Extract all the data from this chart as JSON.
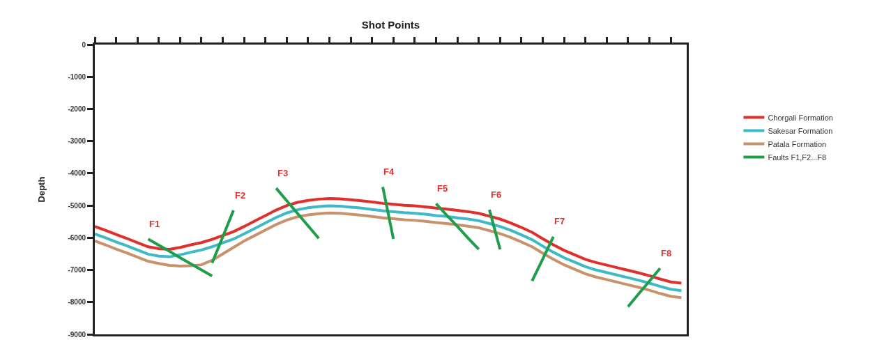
{
  "chart_data": {
    "type": "line",
    "xlabel": "Shot Points",
    "ylabel": "Depth",
    "categories": [
      null,
      null,
      null,
      null,
      null,
      null,
      null,
      null,
      null,
      null,
      null,
      null,
      null,
      null,
      null,
      null,
      null,
      null,
      null,
      null,
      null,
      null,
      null,
      null,
      null,
      null,
      null,
      null,
      null,
      null,
      null,
      null,
      null,
      null,
      null,
      null,
      null,
      null,
      null,
      null,
      null,
      null,
      null,
      null,
      null,
      null,
      null,
      null,
      null,
      null,
      null,
      null,
      null,
      null,
      null,
      null
    ],
    "ylim": [
      -9000,
      0
    ],
    "yticks": [
      0,
      -1000,
      -2000,
      -3000,
      -4000,
      -5000,
      -6000,
      -7000,
      -8000,
      -9000
    ],
    "grid": false,
    "legend": "right",
    "line_style": "solid",
    "series": [
      {
        "name": "Chorgali Formation",
        "color": "#e0302c",
        "values": [
          -5650,
          -5770,
          -5900,
          -6020,
          -6150,
          -6280,
          -6340,
          -6360,
          -6300,
          -6220,
          -6150,
          -6050,
          -5930,
          -5810,
          -5650,
          -5480,
          -5310,
          -5140,
          -5000,
          -4900,
          -4840,
          -4800,
          -4780,
          -4790,
          -4820,
          -4850,
          -4890,
          -4930,
          -4960,
          -4990,
          -5010,
          -5040,
          -5080,
          -5110,
          -5150,
          -5190,
          -5240,
          -5330,
          -5420,
          -5540,
          -5680,
          -5830,
          -6030,
          -6220,
          -6390,
          -6530,
          -6670,
          -6770,
          -6850,
          -6930,
          -7010,
          -7090,
          -7180,
          -7280,
          -7370,
          -7410
        ]
      },
      {
        "name": "Sakesar Formation",
        "color": "#3fb8c8",
        "values": [
          -5880,
          -6000,
          -6130,
          -6250,
          -6380,
          -6510,
          -6570,
          -6590,
          -6530,
          -6450,
          -6380,
          -6280,
          -6160,
          -6040,
          -5880,
          -5710,
          -5540,
          -5370,
          -5230,
          -5130,
          -5070,
          -5030,
          -5010,
          -5020,
          -5050,
          -5080,
          -5120,
          -5160,
          -5190,
          -5220,
          -5240,
          -5270,
          -5310,
          -5340,
          -5380,
          -5420,
          -5470,
          -5560,
          -5650,
          -5770,
          -5910,
          -6060,
          -6260,
          -6450,
          -6620,
          -6760,
          -6900,
          -7000,
          -7080,
          -7160,
          -7240,
          -7320,
          -7410,
          -7510,
          -7600,
          -7640
        ]
      },
      {
        "name": "Patala Formation",
        "color": "#c8926c",
        "values": [
          -6100,
          -6220,
          -6350,
          -6470,
          -6600,
          -6730,
          -6800,
          -6860,
          -6880,
          -6870,
          -6840,
          -6700,
          -6500,
          -6300,
          -6100,
          -5930,
          -5760,
          -5590,
          -5450,
          -5350,
          -5290,
          -5250,
          -5230,
          -5240,
          -5270,
          -5300,
          -5340,
          -5380,
          -5410,
          -5440,
          -5460,
          -5490,
          -5530,
          -5560,
          -5600,
          -5640,
          -5690,
          -5780,
          -5870,
          -5990,
          -6130,
          -6280,
          -6480,
          -6670,
          -6840,
          -6980,
          -7120,
          -7220,
          -7300,
          -7380,
          -7460,
          -7540,
          -7630,
          -7730,
          -7820,
          -7860
        ]
      },
      {
        "name": "Faults F1,F2...F8",
        "color": "#1e9e4a",
        "values": [
          null,
          null,
          null,
          null,
          null,
          -6040,
          -6230,
          -6420,
          -6620,
          -6810,
          -7000,
          -7190,
          null,
          null,
          null,
          null,
          null,
          -4460,
          -4850,
          -5240,
          -5630,
          -6020,
          null,
          null,
          null,
          null,
          null,
          null,
          null,
          null,
          null,
          null,
          -4940,
          -5300,
          -5650,
          -6010,
          -6360,
          null,
          null,
          null,
          null,
          -7340,
          -6660,
          -5970,
          null,
          null,
          null,
          null,
          null,
          null,
          null,
          null,
          null,
          null,
          null,
          null
        ]
      },
      {
        "color": "#1e9e4a",
        "values": [
          null,
          null,
          null,
          null,
          null,
          null,
          null,
          null,
          null,
          null,
          null,
          -6780,
          -5970,
          -5150,
          null,
          null,
          null,
          null,
          null,
          null,
          null,
          null,
          null,
          null,
          null,
          null,
          null,
          -4420,
          -6040,
          null,
          null,
          null,
          null,
          null,
          null,
          null,
          null,
          -5130,
          -6360,
          null,
          null,
          null,
          null,
          null,
          null,
          null,
          null,
          null,
          null,
          null,
          -8140,
          -7740,
          -7350,
          -6950,
          null,
          null
        ]
      }
    ],
    "annotations": [
      "F1",
      "F2",
      "F3",
      "F4",
      "F5",
      "F6",
      "F7",
      "F8"
    ]
  }
}
